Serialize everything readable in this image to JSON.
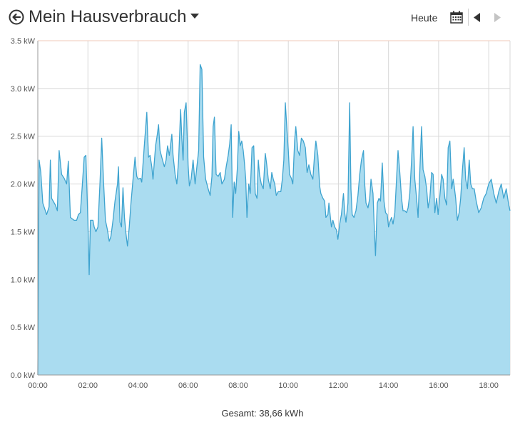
{
  "header": {
    "title": "Mein Hausverbrauch",
    "today_label": "Heute",
    "icons": {
      "back": "back-circle-arrow-icon",
      "dropdown": "caret-down-icon",
      "calendar": "calendar-icon",
      "prev": "triangle-left-icon",
      "next": "triangle-right-icon"
    }
  },
  "footer": {
    "total_text": "Gesamt: 38,66 kWh"
  },
  "colors": {
    "area_fill": "#aadcf0",
    "line": "#3ea3cf",
    "grid": "#d8d8d8",
    "border_top": "#f0c8b8",
    "next_disabled": "#c4c4c4"
  },
  "chart_data": {
    "type": "area",
    "xlabel": "",
    "ylabel": "",
    "x_unit": "hour of day",
    "xlim": [
      0,
      18.85
    ],
    "ylim": [
      0,
      3.5
    ],
    "y_ticks": [
      {
        "value": 0,
        "label": "0.0 kW"
      },
      {
        "value": 0.5,
        "label": "0.5 kW"
      },
      {
        "value": 1.0,
        "label": "1.0 kW"
      },
      {
        "value": 1.5,
        "label": "1.5 kW"
      },
      {
        "value": 2.0,
        "label": "2.0 kW"
      },
      {
        "value": 2.5,
        "label": "2.5 kW"
      },
      {
        "value": 3.0,
        "label": "3.0 kW"
      },
      {
        "value": 3.5,
        "label": "3.5 kW"
      }
    ],
    "x_ticks": [
      {
        "value": 0,
        "label": "00:00"
      },
      {
        "value": 2,
        "label": "02:00"
      },
      {
        "value": 4,
        "label": "04:00"
      },
      {
        "value": 6,
        "label": "06:00"
      },
      {
        "value": 8,
        "label": "08:00"
      },
      {
        "value": 10,
        "label": "10:00"
      },
      {
        "value": 12,
        "label": "12:00"
      },
      {
        "value": 14,
        "label": "14:00"
      },
      {
        "value": 16,
        "label": "16:00"
      },
      {
        "value": 18,
        "label": "18:00"
      }
    ],
    "grid": true,
    "series": [
      {
        "points": [
          [
            0.0,
            0.0
          ],
          [
            0.05,
            2.25
          ],
          [
            0.12,
            2.12
          ],
          [
            0.2,
            1.8
          ],
          [
            0.35,
            1.68
          ],
          [
            0.45,
            1.76
          ],
          [
            0.5,
            2.25
          ],
          [
            0.55,
            1.85
          ],
          [
            0.7,
            1.78
          ],
          [
            0.78,
            1.72
          ],
          [
            0.85,
            2.35
          ],
          [
            0.95,
            2.1
          ],
          [
            1.05,
            2.06
          ],
          [
            1.15,
            2.0
          ],
          [
            1.22,
            2.24
          ],
          [
            1.3,
            1.65
          ],
          [
            1.45,
            1.62
          ],
          [
            1.55,
            1.62
          ],
          [
            1.62,
            1.68
          ],
          [
            1.7,
            1.7
          ],
          [
            1.78,
            2.0
          ],
          [
            1.85,
            2.28
          ],
          [
            1.92,
            2.3
          ],
          [
            2.0,
            1.62
          ],
          [
            2.05,
            1.05
          ],
          [
            2.1,
            1.62
          ],
          [
            2.2,
            1.62
          ],
          [
            2.25,
            1.55
          ],
          [
            2.32,
            1.5
          ],
          [
            2.4,
            1.55
          ],
          [
            2.48,
            2.0
          ],
          [
            2.55,
            2.48
          ],
          [
            2.62,
            2.05
          ],
          [
            2.7,
            1.62
          ],
          [
            2.78,
            1.52
          ],
          [
            2.85,
            1.4
          ],
          [
            2.92,
            1.45
          ],
          [
            3.0,
            1.62
          ],
          [
            3.08,
            1.82
          ],
          [
            3.18,
            2.0
          ],
          [
            3.22,
            2.18
          ],
          [
            3.28,
            1.6
          ],
          [
            3.34,
            1.55
          ],
          [
            3.4,
            1.96
          ],
          [
            3.46,
            1.65
          ],
          [
            3.52,
            1.48
          ],
          [
            3.58,
            1.35
          ],
          [
            3.65,
            1.55
          ],
          [
            3.72,
            1.8
          ],
          [
            3.8,
            2.05
          ],
          [
            3.88,
            2.28
          ],
          [
            3.95,
            2.08
          ],
          [
            4.0,
            2.05
          ],
          [
            4.1,
            2.06
          ],
          [
            4.15,
            2.02
          ],
          [
            4.25,
            2.4
          ],
          [
            4.35,
            2.75
          ],
          [
            4.42,
            2.28
          ],
          [
            4.48,
            2.3
          ],
          [
            4.55,
            2.18
          ],
          [
            4.6,
            2.05
          ],
          [
            4.7,
            2.4
          ],
          [
            4.75,
            2.48
          ],
          [
            4.82,
            2.62
          ],
          [
            4.88,
            2.35
          ],
          [
            4.95,
            2.28
          ],
          [
            5.05,
            2.18
          ],
          [
            5.12,
            2.25
          ],
          [
            5.18,
            2.4
          ],
          [
            5.25,
            2.3
          ],
          [
            5.35,
            2.52
          ],
          [
            5.4,
            2.3
          ],
          [
            5.48,
            2.1
          ],
          [
            5.55,
            2.0
          ],
          [
            5.62,
            2.25
          ],
          [
            5.7,
            2.78
          ],
          [
            5.75,
            2.48
          ],
          [
            5.8,
            2.25
          ],
          [
            5.85,
            2.75
          ],
          [
            5.92,
            2.85
          ],
          [
            6.0,
            2.2
          ],
          [
            6.05,
            1.98
          ],
          [
            6.12,
            2.05
          ],
          [
            6.2,
            2.25
          ],
          [
            6.28,
            2.0
          ],
          [
            6.35,
            2.18
          ],
          [
            6.42,
            2.35
          ],
          [
            6.48,
            3.25
          ],
          [
            6.55,
            3.2
          ],
          [
            6.62,
            2.28
          ],
          [
            6.7,
            2.05
          ],
          [
            6.8,
            1.95
          ],
          [
            6.88,
            1.88
          ],
          [
            6.95,
            2.08
          ],
          [
            7.0,
            2.6
          ],
          [
            7.05,
            2.7
          ],
          [
            7.12,
            2.1
          ],
          [
            7.2,
            2.08
          ],
          [
            7.28,
            2.12
          ],
          [
            7.35,
            2.0
          ],
          [
            7.45,
            2.05
          ],
          [
            7.52,
            2.18
          ],
          [
            7.6,
            2.3
          ],
          [
            7.66,
            2.42
          ],
          [
            7.72,
            2.62
          ],
          [
            7.78,
            1.65
          ],
          [
            7.84,
            2.02
          ],
          [
            7.9,
            1.9
          ],
          [
            7.96,
            2.15
          ],
          [
            8.02,
            2.55
          ],
          [
            8.08,
            2.4
          ],
          [
            8.14,
            2.45
          ],
          [
            8.2,
            2.35
          ],
          [
            8.25,
            2.22
          ],
          [
            8.3,
            2.05
          ],
          [
            8.35,
            1.65
          ],
          [
            8.42,
            2.0
          ],
          [
            8.48,
            1.9
          ],
          [
            8.55,
            2.38
          ],
          [
            8.62,
            2.4
          ],
          [
            8.68,
            1.9
          ],
          [
            8.75,
            1.85
          ],
          [
            8.8,
            2.25
          ],
          [
            8.85,
            2.1
          ],
          [
            8.92,
            2.0
          ],
          [
            9.0,
            1.95
          ],
          [
            9.08,
            2.32
          ],
          [
            9.14,
            2.2
          ],
          [
            9.2,
            2.05
          ],
          [
            9.28,
            1.95
          ],
          [
            9.34,
            2.12
          ],
          [
            9.4,
            2.05
          ],
          [
            9.46,
            2.0
          ],
          [
            9.52,
            1.88
          ],
          [
            9.6,
            1.92
          ],
          [
            9.7,
            1.92
          ],
          [
            9.76,
            2.05
          ],
          [
            9.82,
            2.25
          ],
          [
            9.88,
            2.85
          ],
          [
            9.95,
            2.55
          ],
          [
            10.0,
            2.35
          ],
          [
            10.05,
            2.1
          ],
          [
            10.12,
            2.06
          ],
          [
            10.18,
            2.0
          ],
          [
            10.25,
            2.45
          ],
          [
            10.3,
            2.6
          ],
          [
            10.38,
            2.35
          ],
          [
            10.45,
            2.3
          ],
          [
            10.52,
            2.48
          ],
          [
            10.6,
            2.45
          ],
          [
            10.68,
            2.38
          ],
          [
            10.75,
            2.12
          ],
          [
            10.82,
            2.2
          ],
          [
            10.9,
            2.1
          ],
          [
            10.98,
            2.05
          ],
          [
            11.05,
            2.32
          ],
          [
            11.1,
            2.45
          ],
          [
            11.18,
            2.3
          ],
          [
            11.25,
            1.98
          ],
          [
            11.3,
            1.9
          ],
          [
            11.38,
            1.85
          ],
          [
            11.45,
            1.82
          ],
          [
            11.5,
            1.65
          ],
          [
            11.58,
            1.68
          ],
          [
            11.62,
            1.8
          ],
          [
            11.68,
            1.65
          ],
          [
            11.72,
            1.55
          ],
          [
            11.78,
            1.62
          ],
          [
            11.85,
            1.55
          ],
          [
            11.92,
            1.52
          ],
          [
            11.98,
            1.42
          ],
          [
            12.05,
            1.58
          ],
          [
            12.12,
            1.68
          ],
          [
            12.2,
            1.9
          ],
          [
            12.25,
            1.7
          ],
          [
            12.3,
            1.6
          ],
          [
            12.38,
            1.8
          ],
          [
            12.45,
            2.85
          ],
          [
            12.5,
            1.95
          ],
          [
            12.55,
            1.68
          ],
          [
            12.62,
            1.65
          ],
          [
            12.7,
            1.72
          ],
          [
            12.78,
            1.88
          ],
          [
            12.85,
            2.1
          ],
          [
            12.92,
            2.25
          ],
          [
            13.0,
            2.35
          ],
          [
            13.05,
            2.0
          ],
          [
            13.1,
            1.8
          ],
          [
            13.18,
            1.75
          ],
          [
            13.25,
            1.85
          ],
          [
            13.3,
            2.05
          ],
          [
            13.38,
            1.9
          ],
          [
            13.42,
            1.62
          ],
          [
            13.48,
            1.25
          ],
          [
            13.55,
            1.8
          ],
          [
            13.62,
            1.85
          ],
          [
            13.68,
            1.82
          ],
          [
            13.75,
            2.22
          ],
          [
            13.82,
            1.82
          ],
          [
            13.88,
            1.7
          ],
          [
            13.95,
            1.68
          ],
          [
            14.0,
            1.55
          ],
          [
            14.05,
            1.6
          ],
          [
            14.12,
            1.65
          ],
          [
            14.18,
            1.58
          ],
          [
            14.25,
            1.7
          ],
          [
            14.32,
            2.05
          ],
          [
            14.38,
            2.35
          ],
          [
            14.45,
            2.12
          ],
          [
            14.52,
            1.85
          ],
          [
            14.58,
            1.72
          ],
          [
            14.65,
            1.72
          ],
          [
            14.72,
            1.7
          ],
          [
            14.78,
            1.75
          ],
          [
            14.85,
            1.9
          ],
          [
            14.92,
            2.25
          ],
          [
            14.98,
            2.6
          ],
          [
            15.05,
            2.05
          ],
          [
            15.12,
            1.85
          ],
          [
            15.18,
            1.65
          ],
          [
            15.25,
            2.15
          ],
          [
            15.32,
            2.6
          ],
          [
            15.38,
            2.15
          ],
          [
            15.45,
            2.08
          ],
          [
            15.52,
            1.95
          ],
          [
            15.58,
            1.75
          ],
          [
            15.65,
            1.85
          ],
          [
            15.72,
            2.12
          ],
          [
            15.78,
            2.1
          ],
          [
            15.85,
            1.7
          ],
          [
            15.92,
            1.85
          ],
          [
            15.98,
            1.68
          ],
          [
            16.05,
            1.88
          ],
          [
            16.12,
            2.1
          ],
          [
            16.18,
            2.05
          ],
          [
            16.25,
            1.85
          ],
          [
            16.32,
            1.78
          ],
          [
            16.38,
            2.38
          ],
          [
            16.45,
            2.45
          ],
          [
            16.52,
            1.95
          ],
          [
            16.58,
            2.05
          ],
          [
            16.62,
            1.98
          ],
          [
            16.68,
            1.85
          ],
          [
            16.75,
            1.62
          ],
          [
            16.82,
            1.7
          ],
          [
            16.88,
            1.85
          ],
          [
            16.95,
            2.15
          ],
          [
            17.02,
            2.38
          ],
          [
            17.08,
            2.05
          ],
          [
            17.15,
            1.95
          ],
          [
            17.22,
            2.25
          ],
          [
            17.28,
            2.0
          ],
          [
            17.35,
            1.95
          ],
          [
            17.42,
            1.95
          ],
          [
            17.5,
            1.82
          ],
          [
            17.6,
            1.7
          ],
          [
            17.7,
            1.75
          ],
          [
            17.8,
            1.85
          ],
          [
            17.9,
            1.9
          ],
          [
            18.0,
            2.0
          ],
          [
            18.1,
            2.05
          ],
          [
            18.2,
            1.9
          ],
          [
            18.3,
            1.8
          ],
          [
            18.4,
            1.92
          ],
          [
            18.5,
            2.0
          ],
          [
            18.6,
            1.85
          ],
          [
            18.7,
            1.95
          ],
          [
            18.8,
            1.78
          ],
          [
            18.85,
            1.72
          ]
        ]
      }
    ]
  }
}
